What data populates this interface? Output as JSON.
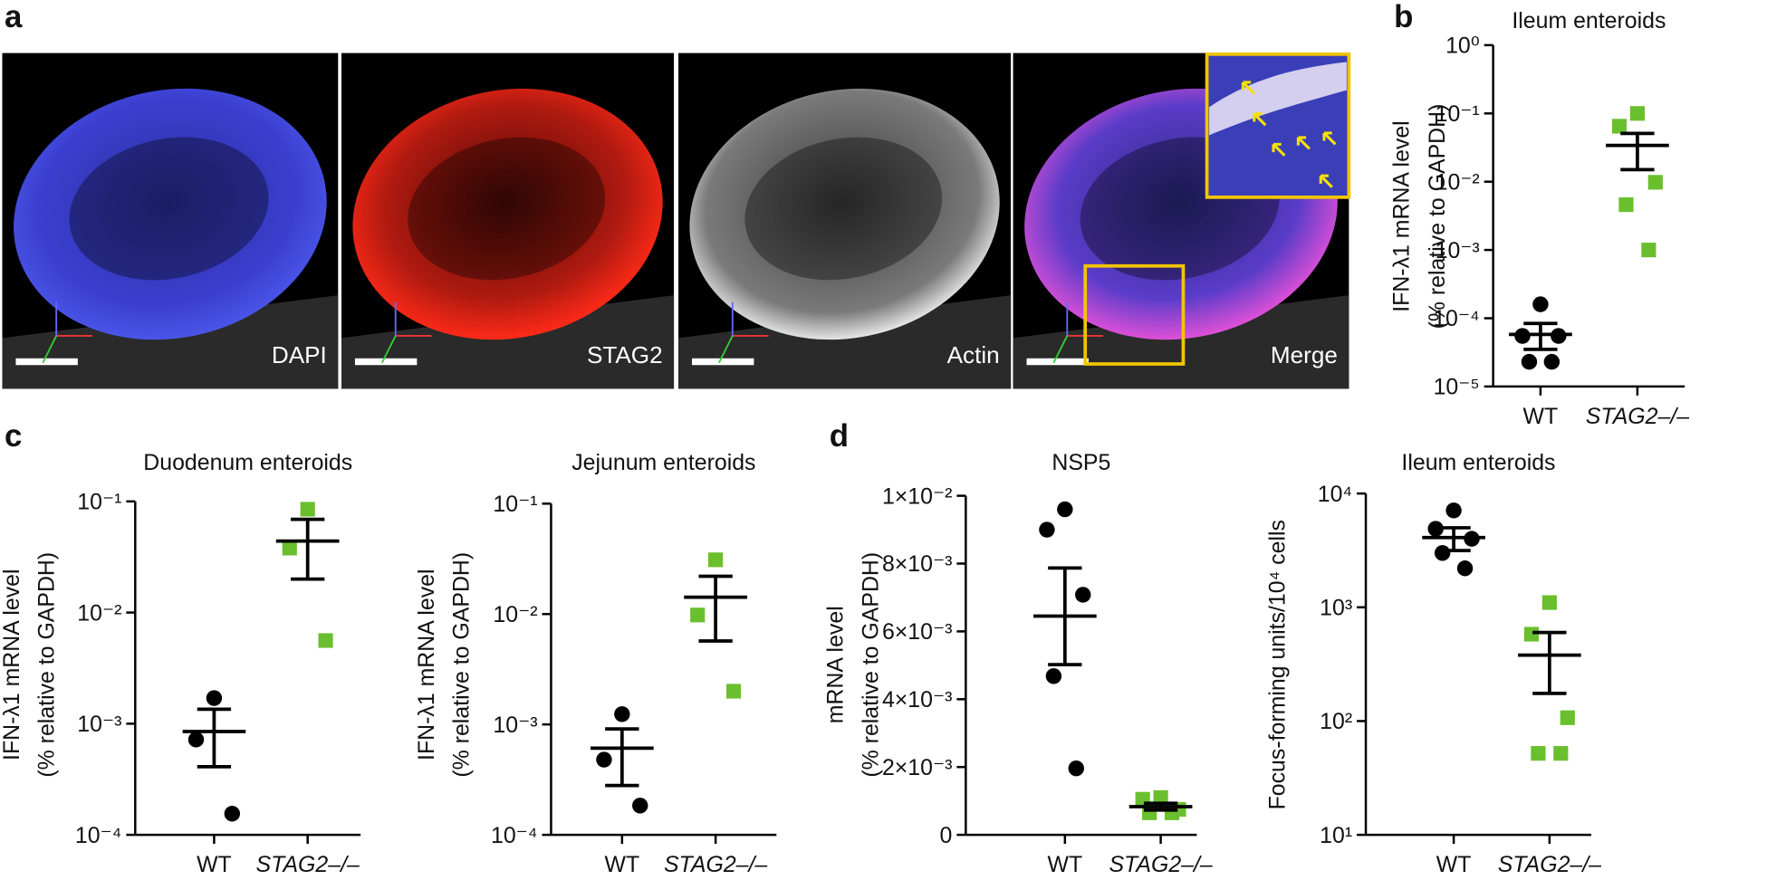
{
  "panel_labels": [
    "a",
    "b",
    "c",
    "d"
  ],
  "image_panels": [
    {
      "label": "DAPI"
    },
    {
      "label": "STAG2"
    },
    {
      "label": "Actin"
    },
    {
      "label": "Merge"
    }
  ],
  "chart_data": [
    {
      "type": "dot",
      "title": "Ileum enteroids",
      "ylabel": [
        "IFN-λ1 mRNA level",
        "(% relative to GAPDH)"
      ],
      "categories": [
        "WT",
        "STAG2–/–"
      ],
      "colors": [
        "#000000",
        "#6abf2e"
      ],
      "markers": [
        "circle",
        "square"
      ],
      "points": [
        [
          0.00016,
          5.5e-05,
          5.5e-05,
          2.3e-05,
          2.3e-05
        ],
        [
          0.1,
          0.065,
          0.0098,
          0.0046,
          0.001
        ]
      ],
      "mean": [
        5.8e-05,
        0.034
      ],
      "error_high": [
        8.4e-05,
        0.051
      ],
      "error_low": [
        3.5e-05,
        0.015
      ],
      "ylog": true,
      "ylim": [
        1e-05,
        1
      ],
      "yticks": [
        {
          "value": 1e-05,
          "label": "10⁻⁵"
        },
        {
          "value": 0.0001,
          "label": "10⁻⁴"
        },
        {
          "value": 0.001,
          "label": "10⁻³"
        },
        {
          "value": 0.01,
          "label": "10⁻²"
        },
        {
          "value": 0.1,
          "label": "10⁻¹"
        },
        {
          "value": 1,
          "label": "10⁰"
        }
      ]
    },
    {
      "type": "dot",
      "title": "Duodenum enteroids",
      "ylabel": [
        "IFN-λ1 mRNA level",
        "(% relative to GAPDH)"
      ],
      "categories": [
        "WT",
        "STAG2–/–"
      ],
      "colors": [
        "#000000",
        "#6abf2e"
      ],
      "markers": [
        "circle",
        "square"
      ],
      "points": [
        [
          0.0017,
          0.00072,
          0.000155
        ],
        [
          0.085,
          0.038,
          0.0056
        ]
      ],
      "mean": [
        0.00085,
        0.044
      ],
      "error_high": [
        0.00135,
        0.069
      ],
      "error_low": [
        0.00041,
        0.02
      ],
      "ylog": true,
      "ylim": [
        0.0001,
        0.1
      ],
      "yticks": [
        {
          "value": 0.0001,
          "label": "10⁻⁴"
        },
        {
          "value": 0.001,
          "label": "10⁻³"
        },
        {
          "value": 0.01,
          "label": "10⁻²"
        },
        {
          "value": 0.1,
          "label": "10⁻¹"
        }
      ]
    },
    {
      "type": "dot",
      "title": "Jejunum enteroids",
      "ylabel": [
        "IFN-λ1 mRNA level",
        "(% relative to GAPDH)"
      ],
      "categories": [
        "WT",
        "STAG2–/–"
      ],
      "colors": [
        "#000000",
        "#6abf2e"
      ],
      "markers": [
        "circle",
        "square"
      ],
      "points": [
        [
          0.00124,
          0.00048,
          0.000184
        ],
        [
          0.031,
          0.0098,
          0.002
        ]
      ],
      "mean": [
        0.00061,
        0.0142
      ],
      "error_high": [
        0.00091,
        0.022
      ],
      "error_low": [
        0.00028,
        0.0057
      ],
      "ylog": true,
      "ylim": [
        0.0001,
        0.1
      ],
      "yticks": [
        {
          "value": 0.0001,
          "label": "10⁻⁴"
        },
        {
          "value": 0.001,
          "label": "10⁻³"
        },
        {
          "value": 0.01,
          "label": "10⁻²"
        },
        {
          "value": 0.1,
          "label": "10⁻¹"
        }
      ]
    },
    {
      "type": "dot",
      "title": "NSP5",
      "ylabel": [
        "mRNA level",
        "(% relative to GAPDH)"
      ],
      "categories": [
        "WT",
        "STAG2–/–"
      ],
      "colors": [
        "#000000",
        "#6abf2e"
      ],
      "markers": [
        "circle",
        "square"
      ],
      "points": [
        [
          0.0096,
          0.009,
          0.00708,
          0.00468,
          0.00196
        ],
        [
          0.0011,
          0.00105,
          0.00075,
          0.00065,
          0.00065
        ]
      ],
      "mean": [
        0.00645,
        0.00083
      ],
      "error_high": [
        0.00787,
        0.00093
      ],
      "error_low": [
        0.00502,
        0.00073
      ],
      "ylog": false,
      "ylim": [
        0,
        0.01
      ],
      "yticks": [
        0,
        {
          "value": 0.002,
          "label": "2×10⁻³"
        },
        {
          "value": 0.004,
          "label": "4×10⁻³"
        },
        {
          "value": 0.006,
          "label": "6×10⁻³"
        },
        {
          "value": 0.008,
          "label": "8×10⁻³"
        },
        {
          "value": 0.01,
          "label": "1×10⁻²"
        }
      ]
    },
    {
      "type": "dot",
      "title": "Ileum enteroids",
      "ylabel": [
        "Focus-forming units/10⁴ cells"
      ],
      "categories": [
        "WT",
        "STAG2–/–"
      ],
      "colors": [
        "#000000",
        "#6abf2e"
      ],
      "markers": [
        "circle",
        "square"
      ],
      "points": [
        [
          7100,
          4900,
          4000,
          3000,
          2200
        ],
        [
          1100,
          580,
          107,
          52,
          52
        ]
      ],
      "mean": [
        4100,
        380
      ],
      "error_high": [
        5000,
        600
      ],
      "error_low": [
        3150,
        175
      ],
      "ylog": true,
      "ylim": [
        10,
        10000
      ],
      "yticks": [
        {
          "value": 10,
          "label": "10¹"
        },
        {
          "value": 100,
          "label": "10²"
        },
        {
          "value": 1000,
          "label": "10³"
        },
        {
          "value": 10000,
          "label": "10⁴"
        }
      ]
    }
  ]
}
